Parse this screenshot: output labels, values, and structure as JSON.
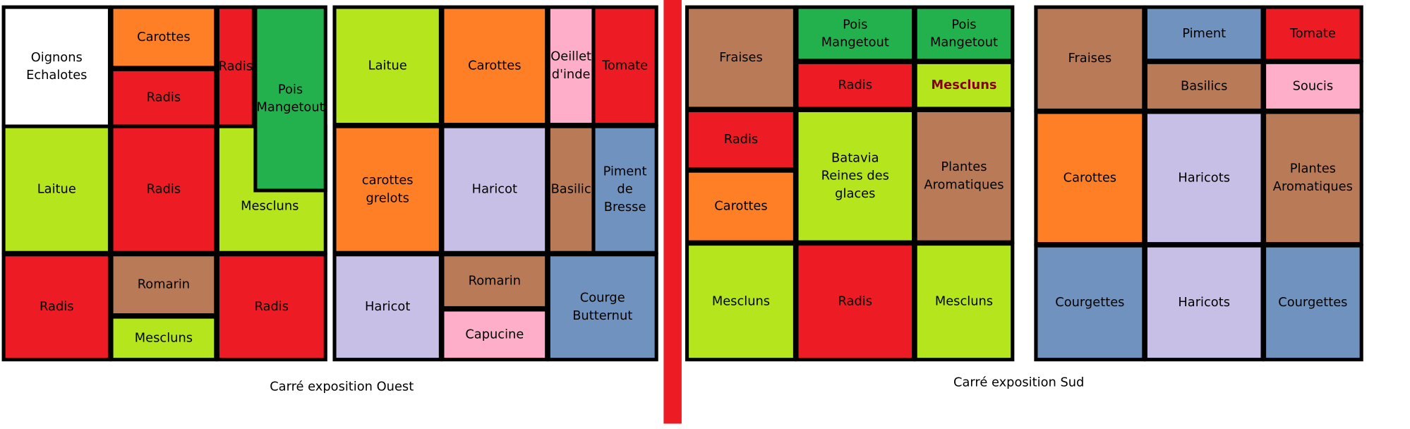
{
  "beds": [
    {
      "plots": [
        {
          "lines": [
            "Oignons",
            "Echalotes"
          ]
        },
        {
          "lines": [
            "Carottes"
          ]
        },
        {
          "lines": [
            "Radis"
          ]
        },
        {
          "lines": [
            "Radis"
          ]
        },
        {
          "lines": [
            "Laitue"
          ]
        },
        {
          "lines": [
            "Radis"
          ]
        },
        {
          "lines": [
            "Mescluns"
          ]
        },
        {
          "lines": [
            "Pois",
            "Mangetout"
          ]
        },
        {
          "lines": [
            "Radis"
          ]
        },
        {
          "lines": [
            "Romarin"
          ]
        },
        {
          "lines": [
            "Mescluns"
          ]
        },
        {
          "lines": [
            "Radis"
          ]
        }
      ]
    },
    {
      "plots": [
        {
          "lines": [
            "Laitue"
          ]
        },
        {
          "lines": [
            "Carottes"
          ]
        },
        {
          "lines": [
            "Oeillet",
            "d'inde"
          ]
        },
        {
          "lines": [
            "Tomate"
          ]
        },
        {
          "lines": [
            "carottes",
            "grelots"
          ]
        },
        {
          "lines": [
            "Haricot"
          ]
        },
        {
          "lines": [
            "Basilic"
          ]
        },
        {
          "lines": [
            "Piment",
            "de",
            "Bresse"
          ]
        },
        {
          "lines": [
            "Haricot"
          ]
        },
        {
          "lines": [
            "Romarin"
          ]
        },
        {
          "lines": [
            "Capucine"
          ]
        },
        {
          "lines": [
            "Courge",
            "Butternut"
          ]
        }
      ]
    },
    {
      "plots": [
        {
          "lines": [
            "Fraises"
          ]
        },
        {
          "lines": [
            "Pois",
            "Mangetout"
          ]
        },
        {
          "lines": [
            "Pois",
            "Mangetout"
          ]
        },
        {
          "lines": [
            "Radis"
          ]
        },
        {
          "lines": [
            "Mescluns"
          ]
        },
        {
          "lines": [
            "Radis"
          ]
        },
        {
          "lines": [
            "Carottes"
          ]
        },
        {
          "lines": [
            "Batavia",
            "Reines des",
            "glaces"
          ]
        },
        {
          "lines": [
            "Plantes",
            "Aromatiques"
          ]
        },
        {
          "lines": [
            "Mescluns"
          ]
        },
        {
          "lines": [
            "Radis"
          ]
        },
        {
          "lines": [
            "Mescluns"
          ]
        }
      ]
    },
    {
      "plots": [
        {
          "lines": [
            "Fraises"
          ]
        },
        {
          "lines": [
            "Piment"
          ]
        },
        {
          "lines": [
            "Tomate"
          ]
        },
        {
          "lines": [
            "Basilics"
          ]
        },
        {
          "lines": [
            "Soucis"
          ]
        },
        {
          "lines": [
            "Carottes"
          ]
        },
        {
          "lines": [
            "Haricots"
          ]
        },
        {
          "lines": [
            "Plantes",
            "Aromatiques"
          ]
        },
        {
          "lines": [
            "Courgettes"
          ]
        },
        {
          "lines": [
            "Haricots"
          ]
        },
        {
          "lines": [
            "Courgettes"
          ]
        }
      ]
    }
  ],
  "captions": [
    "Carré exposition Ouest",
    "Carré exposition Sud"
  ]
}
